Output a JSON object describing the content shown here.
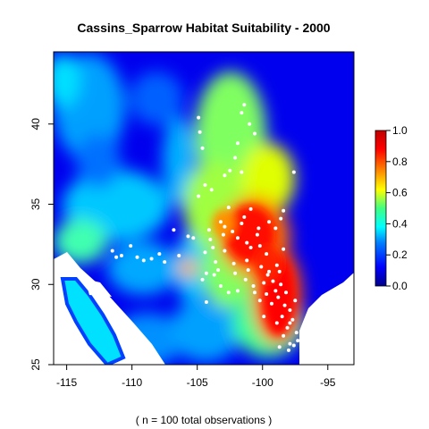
{
  "chart_data": {
    "type": "heatmap",
    "title": "Cassins_Sparrow Habitat Suitability - 2000",
    "caption": "( n = 100 total observations )",
    "xlim": [
      -116,
      -93
    ],
    "ylim": [
      25,
      44.5
    ],
    "x_ticks": [
      -115,
      -110,
      -105,
      -100,
      -95
    ],
    "y_ticks": [
      25,
      30,
      35,
      40
    ],
    "colorbar": {
      "range": [
        0,
        1
      ],
      "ticks": [
        0.0,
        0.2,
        0.4,
        0.6,
        0.8,
        1.0
      ],
      "tick_labels": [
        "0.0",
        "0.2",
        "0.4",
        "0.6",
        "0.8",
        "1.0"
      ],
      "colors": [
        "#00008b",
        "#0000ff",
        "#0080ff",
        "#00ffff",
        "#40ff80",
        "#ffff00",
        "#ff8000",
        "#ff0000",
        "#c00000"
      ]
    },
    "observations": [
      [
        -104.9,
        40.4
      ],
      [
        -104.8,
        39.5
      ],
      [
        -104.6,
        38.5
      ],
      [
        -101.4,
        41.2
      ],
      [
        -101.6,
        40.7
      ],
      [
        -101.0,
        40.0
      ],
      [
        -100.6,
        39.4
      ],
      [
        -101.9,
        38.8
      ],
      [
        -102.1,
        37.9
      ],
      [
        -101.6,
        37.0
      ],
      [
        -102.5,
        37.1
      ],
      [
        -102.9,
        36.8
      ],
      [
        -97.6,
        37.0
      ],
      [
        -104.4,
        36.2
      ],
      [
        -104.9,
        35.5
      ],
      [
        -103.9,
        35.9
      ],
      [
        -100.9,
        34.7
      ],
      [
        -98.4,
        34.6
      ],
      [
        -98.6,
        34.1
      ],
      [
        -103.2,
        33.9
      ],
      [
        -103.0,
        33.1
      ],
      [
        -102.3,
        33.3
      ],
      [
        -101.6,
        33.8
      ],
      [
        -100.3,
        33.5
      ],
      [
        -99.0,
        33.5
      ],
      [
        -104.0,
        32.8
      ],
      [
        -103.8,
        32.3
      ],
      [
        -102.9,
        32.1
      ],
      [
        -101.2,
        32.6
      ],
      [
        -100.9,
        32.3
      ],
      [
        -100.2,
        32.4
      ],
      [
        -99.7,
        31.9
      ],
      [
        -102.2,
        31.3
      ],
      [
        -101.2,
        31.5
      ],
      [
        -100.1,
        31.1
      ],
      [
        -99.6,
        30.6
      ],
      [
        -99.2,
        30.2
      ],
      [
        -98.7,
        30.8
      ],
      [
        -104.3,
        30.7
      ],
      [
        -103.7,
        30.6
      ],
      [
        -104.6,
        30.3
      ],
      [
        -103.2,
        29.9
      ],
      [
        -102.6,
        29.5
      ],
      [
        -101.3,
        30.3
      ],
      [
        -100.6,
        29.5
      ],
      [
        -100.2,
        29.0
      ],
      [
        -99.7,
        29.4
      ],
      [
        -99.3,
        28.8
      ],
      [
        -98.8,
        29.2
      ],
      [
        -98.2,
        29.5
      ],
      [
        -97.9,
        28.4
      ],
      [
        -98.5,
        28.0
      ],
      [
        -98.9,
        27.6
      ],
      [
        -97.7,
        27.8
      ],
      [
        -98.1,
        27.3
      ],
      [
        -97.4,
        27.0
      ],
      [
        -98.4,
        26.8
      ],
      [
        -97.9,
        26.3
      ],
      [
        -97.3,
        26.5
      ],
      [
        -98.7,
        26.1
      ],
      [
        -98.6,
        30.0
      ],
      [
        -99.5,
        30.8
      ],
      [
        -99.0,
        29.6
      ],
      [
        -97.5,
        29.0
      ],
      [
        -98.0,
        25.9
      ],
      [
        -97.6,
        26.2
      ],
      [
        -110.1,
        32.4
      ],
      [
        -110.8,
        31.8
      ],
      [
        -109.6,
        31.7
      ],
      [
        -109.1,
        31.5
      ],
      [
        -108.5,
        31.6
      ],
      [
        -107.9,
        31.9
      ],
      [
        -107.5,
        31.4
      ],
      [
        -106.4,
        31.8
      ],
      [
        -106.8,
        33.4
      ],
      [
        -105.3,
        32.9
      ],
      [
        -111.2,
        31.7
      ],
      [
        -111.5,
        32.1
      ],
      [
        -104.4,
        32.0
      ],
      [
        -103.4,
        30.9
      ],
      [
        -101.9,
        29.6
      ],
      [
        -100.7,
        29.9
      ],
      [
        -99.9,
        28.0
      ],
      [
        -98.3,
        28.7
      ],
      [
        -97.9,
        27.6
      ],
      [
        -101.4,
        34.2
      ],
      [
        -102.6,
        34.8
      ],
      [
        -102.9,
        33.6
      ],
      [
        -101.9,
        32.9
      ],
      [
        -100.4,
        33.1
      ],
      [
        -99.5,
        33.9
      ],
      [
        -98.9,
        31.2
      ],
      [
        -98.4,
        32.2
      ],
      [
        -99.9,
        30.1
      ],
      [
        -101.1,
        30.9
      ],
      [
        -102.1,
        30.7
      ],
      [
        -103.6,
        31.4
      ],
      [
        -104.1,
        33.4
      ],
      [
        -105.7,
        33.0
      ],
      [
        -104.3,
        28.9
      ]
    ]
  }
}
